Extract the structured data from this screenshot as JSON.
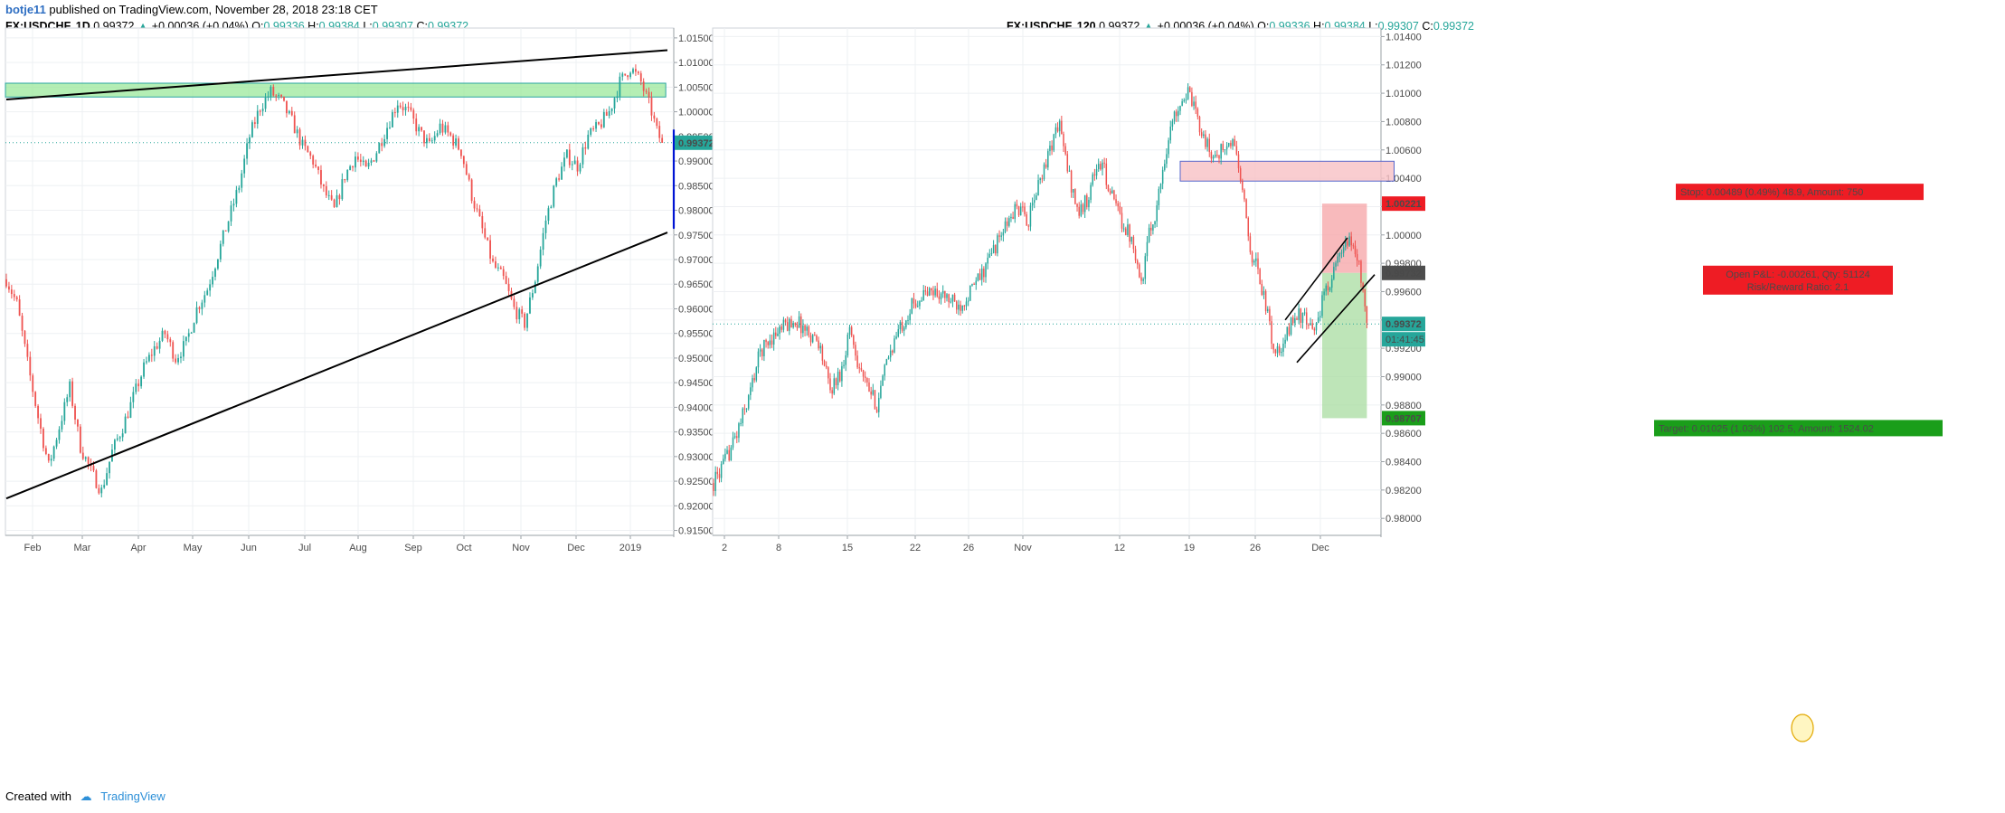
{
  "header": {
    "author": "botje11",
    "published": "published on TradingView.com, November 28, 2018 23:18 CET"
  },
  "footer": {
    "created_with": "Created with",
    "brand": "TradingView"
  },
  "colors": {
    "up": "#26a69a",
    "down": "#ef5350",
    "grid": "#eef0f3",
    "zone_green": "#9be89b",
    "zone_red": "#f7c1c4",
    "drawing_blue": "#0014d4",
    "stop_red": "#ee1c24",
    "target_green": "#1a9e1a"
  },
  "chart_data": [
    {
      "type": "candlestick",
      "symbol": "FX:USDCHF",
      "interval": "1D",
      "legend": {
        "symbol": "FX:USDCHF, 1D",
        "last": "0.99372",
        "change": "+0.00036 (+0.04%)",
        "o_label": "O:",
        "o": "0.99336",
        "h_label": "H:",
        "h": "0.99384",
        "l_label": "L:",
        "l": "0.99307",
        "c_label": "C:",
        "c": "0.99372"
      },
      "ylim": [
        0.914,
        1.017
      ],
      "y_ticks": [
        "1.01500",
        "1.01000",
        "1.00500",
        "1.00000",
        "0.99500",
        "0.99000",
        "0.98500",
        "0.98000",
        "0.97500",
        "0.97000",
        "0.96500",
        "0.96000",
        "0.95500",
        "0.95000",
        "0.94500",
        "0.94000",
        "0.93500",
        "0.93000",
        "0.92500",
        "0.92000",
        "0.91500"
      ],
      "x_ticks": [
        "Feb",
        "Mar",
        "Apr",
        "May",
        "Jun",
        "Jul",
        "Aug",
        "Sep",
        "Oct",
        "Nov",
        "Dec",
        "2019"
      ],
      "last_price_label": "0.99372",
      "close_path": [
        [
          0,
          0.966
        ],
        [
          4,
          0.961
        ],
        [
          8,
          0.949
        ],
        [
          12,
          0.938
        ],
        [
          16,
          0.928
        ],
        [
          20,
          0.936
        ],
        [
          24,
          0.944
        ],
        [
          28,
          0.932
        ],
        [
          32,
          0.927
        ],
        [
          36,
          0.923
        ],
        [
          40,
          0.931
        ],
        [
          44,
          0.936
        ],
        [
          48,
          0.942
        ],
        [
          52,
          0.948
        ],
        [
          56,
          0.952
        ],
        [
          60,
          0.955
        ],
        [
          64,
          0.95
        ],
        [
          68,
          0.953
        ],
        [
          72,
          0.96
        ],
        [
          76,
          0.964
        ],
        [
          80,
          0.971
        ],
        [
          84,
          0.978
        ],
        [
          88,
          0.985
        ],
        [
          92,
          0.995
        ],
        [
          96,
          1.001
        ],
        [
          100,
          1.004
        ],
        [
          104,
          1.002
        ],
        [
          108,
          0.998
        ],
        [
          112,
          0.993
        ],
        [
          116,
          0.99
        ],
        [
          120,
          0.984
        ],
        [
          124,
          0.98
        ],
        [
          128,
          0.987
        ],
        [
          132,
          0.991
        ],
        [
          136,
          0.988
        ],
        [
          140,
          0.992
        ],
        [
          144,
          0.997
        ],
        [
          148,
          1.002
        ],
        [
          152,
          1.0
        ],
        [
          156,
          0.996
        ],
        [
          160,
          0.993
        ],
        [
          164,
          0.997
        ],
        [
          168,
          0.995
        ],
        [
          172,
          0.992
        ],
        [
          176,
          0.983
        ],
        [
          180,
          0.976
        ],
        [
          184,
          0.969
        ],
        [
          188,
          0.966
        ],
        [
          192,
          0.96
        ],
        [
          196,
          0.957
        ],
        [
          200,
          0.966
        ],
        [
          204,
          0.978
        ],
        [
          208,
          0.986
        ],
        [
          212,
          0.991
        ],
        [
          216,
          0.989
        ],
        [
          220,
          0.995
        ],
        [
          224,
          0.997
        ],
        [
          228,
          1.0
        ],
        [
          232,
          1.006
        ],
        [
          236,
          1.009
        ],
        [
          240,
          1.006
        ],
        [
          244,
          1.0
        ],
        [
          246,
          0.996
        ],
        [
          248,
          0.9937
        ]
      ],
      "drawings": {
        "supply_zone": [
          1.003,
          1.0058
        ],
        "upper_trendline": [
          [
            0,
            1.0025
          ],
          [
            250,
            1.0125
          ]
        ],
        "lower_trendline": [
          [
            0,
            0.9215
          ],
          [
            250,
            0.9755
          ]
        ],
        "projection_curve_blue": [
          [
            254,
            0.9964
          ],
          [
            258,
            0.995
          ],
          [
            259,
            0.99
          ],
          [
            259,
            0.978
          ],
          [
            262,
            0.9773
          ],
          [
            270,
            0.9766
          ],
          [
            280,
            0.9764
          ],
          [
            286,
            0.977
          ],
          [
            292,
            0.979
          ]
        ]
      }
    },
    {
      "type": "candlestick",
      "symbol": "FX:USDCHF",
      "interval": "120",
      "legend": {
        "symbol": "FX:USDCHF, 120",
        "last": "0.99372",
        "change": "+0.00036 (+0.04%)",
        "o_label": "O:",
        "o": "0.99336",
        "h_label": "H:",
        "h": "0.99384",
        "l_label": "L:",
        "l": "0.99307",
        "c_label": "C:",
        "c": "0.99372"
      },
      "ylim": [
        0.9788,
        1.0146
      ],
      "y_ticks": [
        "1.01400",
        "1.01200",
        "1.01000",
        "1.00800",
        "1.00600",
        "1.00400",
        "1.00200",
        "1.00000",
        "0.99800",
        "0.99600",
        "0.99400",
        "0.99200",
        "0.99000",
        "0.98800",
        "0.98600",
        "0.98400",
        "0.98200",
        "0.98000"
      ],
      "x_ticks": [
        "2",
        "8",
        "15",
        "22",
        "26",
        "Nov",
        "12",
        "19",
        "26",
        "Dec"
      ],
      "price_labels": {
        "stop_level": "1.00221",
        "current_pnl_level": "0.99732",
        "last": "0.99372",
        "countdown": "01:41:45",
        "target_level": "0.98707"
      },
      "close_path": [
        [
          0,
          0.9825
        ],
        [
          6,
          0.984
        ],
        [
          12,
          0.986
        ],
        [
          18,
          0.9885
        ],
        [
          24,
          0.9918
        ],
        [
          30,
          0.9928
        ],
        [
          36,
          0.9935
        ],
        [
          42,
          0.994
        ],
        [
          48,
          0.9932
        ],
        [
          54,
          0.9925
        ],
        [
          60,
          0.989
        ],
        [
          66,
          0.9905
        ],
        [
          70,
          0.9935
        ],
        [
          74,
          0.9912
        ],
        [
          78,
          0.9895
        ],
        [
          84,
          0.988
        ],
        [
          90,
          0.9915
        ],
        [
          96,
          0.9935
        ],
        [
          102,
          0.995
        ],
        [
          108,
          0.9958
        ],
        [
          114,
          0.996
        ],
        [
          120,
          0.9955
        ],
        [
          126,
          0.995
        ],
        [
          132,
          0.996
        ],
        [
          138,
          0.9972
        ],
        [
          144,
          0.999
        ],
        [
          150,
          1.0005
        ],
        [
          156,
          1.002
        ],
        [
          162,
          1.001
        ],
        [
          168,
          1.004
        ],
        [
          174,
          1.0065
        ],
        [
          178,
          1.008
        ],
        [
          180,
          1.006
        ],
        [
          184,
          1.0035
        ],
        [
          188,
          1.0015
        ],
        [
          192,
          1.0025
        ],
        [
          196,
          1.0045
        ],
        [
          200,
          1.005
        ],
        [
          204,
          1.003
        ],
        [
          210,
          1.001
        ],
        [
          216,
          0.9995
        ],
        [
          220,
          0.9965
        ],
        [
          224,
          1.0
        ],
        [
          228,
          1.002
        ],
        [
          232,
          1.0055
        ],
        [
          236,
          1.008
        ],
        [
          240,
          1.0095
        ],
        [
          244,
          1.01
        ],
        [
          248,
          1.0085
        ],
        [
          252,
          1.007
        ],
        [
          256,
          1.0055
        ],
        [
          262,
          1.006
        ],
        [
          268,
          1.0065
        ],
        [
          272,
          1.003
        ],
        [
          276,
          0.999
        ],
        [
          280,
          0.9975
        ],
        [
          284,
          0.995
        ],
        [
          288,
          0.992
        ],
        [
          292,
          0.9915
        ],
        [
          296,
          0.9935
        ],
        [
          300,
          0.9945
        ],
        [
          304,
          0.994
        ],
        [
          308,
          0.993
        ],
        [
          312,
          0.9948
        ],
        [
          316,
          0.9965
        ],
        [
          320,
          0.9978
        ],
        [
          324,
          0.999
        ],
        [
          328,
          0.9995
        ],
        [
          332,
          0.998
        ],
        [
          334,
          0.996
        ],
        [
          336,
          0.9938
        ]
      ],
      "drawings": {
        "supply_zone": [
          1.0038,
          1.0052
        ],
        "channel_upper": [
          [
            294,
            0.994
          ],
          [
            326,
            0.9998
          ]
        ],
        "channel_lower": [
          [
            300,
            0.991
          ],
          [
            340,
            0.9972
          ]
        ],
        "position": {
          "entry": 0.99732,
          "stop": 1.00221,
          "target": 0.98707,
          "stop_label": "Stop: 0.00489 (0.49%) 48.9, Amount: 750",
          "pnl_label": "Open P&L: -0.00261, Qty: 51124",
          "rr_label": "Risk/Reward Ratio: 2.1",
          "target_label": "Target: 0.01025 (1.03%) 102.5, Amount: 1524.02"
        }
      }
    }
  ]
}
